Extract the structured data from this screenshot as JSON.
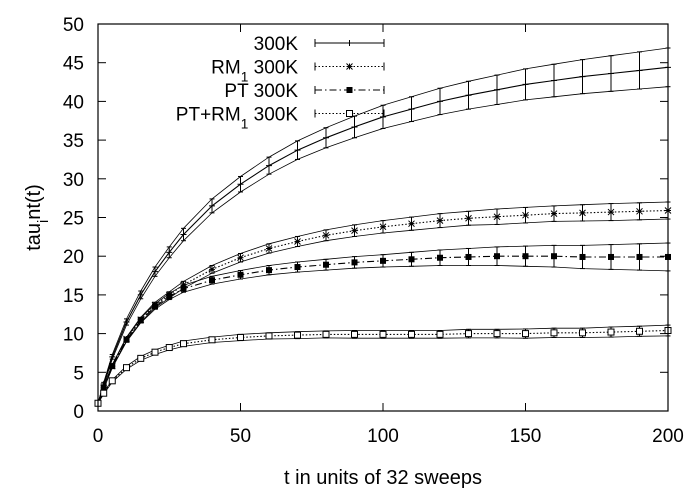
{
  "chart_data": {
    "type": "line",
    "title": "",
    "xlabel": "t in units of 32 sweeps",
    "ylabel": "tau_int(t)",
    "xlim": [
      0,
      200
    ],
    "ylim": [
      0,
      50
    ],
    "xticks": [
      0,
      50,
      100,
      150,
      200
    ],
    "yticks": [
      0,
      5,
      10,
      15,
      20,
      25,
      30,
      35,
      40,
      45,
      50
    ],
    "grid": false,
    "legend_position": "top-right",
    "error_bars": true,
    "x": [
      0,
      2,
      5,
      10,
      15,
      20,
      25,
      30,
      40,
      50,
      60,
      70,
      80,
      90,
      100,
      110,
      120,
      130,
      140,
      150,
      160,
      170,
      180,
      190,
      200
    ],
    "series": [
      {
        "name": "300K",
        "marker": "plus",
        "line": "solid",
        "values": [
          1,
          3.5,
          7.0,
          11.5,
          15.0,
          18.0,
          20.5,
          22.8,
          26.5,
          29.3,
          31.7,
          33.7,
          35.3,
          36.7,
          38.0,
          39.0,
          40.0,
          40.8,
          41.5,
          42.2,
          42.7,
          43.2,
          43.6,
          44.0,
          44.4
        ],
        "errors": [
          0,
          0.2,
          0.3,
          0.4,
          0.5,
          0.6,
          0.7,
          0.8,
          0.9,
          1.0,
          1.1,
          1.2,
          1.3,
          1.4,
          1.5,
          1.6,
          1.7,
          1.8,
          1.9,
          2.0,
          2.1,
          2.2,
          2.3,
          2.4,
          2.5
        ]
      },
      {
        "name": "RM_1 300K",
        "marker": "star",
        "line": "dotted",
        "values": [
          1,
          3.0,
          5.8,
          9.3,
          11.8,
          13.7,
          15.0,
          16.3,
          18.3,
          19.8,
          21.0,
          21.9,
          22.7,
          23.3,
          23.8,
          24.2,
          24.6,
          24.9,
          25.1,
          25.3,
          25.5,
          25.6,
          25.7,
          25.8,
          25.9
        ],
        "errors": [
          0,
          0.15,
          0.2,
          0.25,
          0.3,
          0.35,
          0.4,
          0.45,
          0.5,
          0.55,
          0.6,
          0.65,
          0.7,
          0.75,
          0.8,
          0.85,
          0.9,
          0.9,
          1.0,
          1.0,
          1.0,
          1.05,
          1.1,
          1.1,
          1.1
        ]
      },
      {
        "name": "PT 300K",
        "marker": "filled-square",
        "line": "dash-dot",
        "values": [
          1,
          3.0,
          5.8,
          9.2,
          11.7,
          13.5,
          14.8,
          15.8,
          16.9,
          17.6,
          18.2,
          18.6,
          18.9,
          19.2,
          19.4,
          19.6,
          19.8,
          19.9,
          20.0,
          20.0,
          20.0,
          19.9,
          19.9,
          19.9,
          19.9
        ],
        "errors": [
          0,
          0.15,
          0.2,
          0.25,
          0.3,
          0.35,
          0.4,
          0.45,
          0.5,
          0.55,
          0.6,
          0.65,
          0.7,
          0.75,
          0.8,
          0.9,
          1.0,
          1.1,
          1.2,
          1.3,
          1.4,
          1.5,
          1.6,
          1.7,
          1.8
        ]
      },
      {
        "name": "PT+RM_1 300K",
        "marker": "open-square",
        "line": "dotted",
        "values": [
          1,
          2.3,
          3.9,
          5.6,
          6.8,
          7.6,
          8.2,
          8.7,
          9.2,
          9.5,
          9.7,
          9.8,
          9.9,
          9.9,
          9.9,
          9.9,
          9.9,
          10.0,
          10.0,
          10.0,
          10.1,
          10.1,
          10.2,
          10.3,
          10.4
        ],
        "errors": [
          0,
          0.1,
          0.15,
          0.2,
          0.25,
          0.3,
          0.3,
          0.35,
          0.35,
          0.4,
          0.4,
          0.45,
          0.45,
          0.5,
          0.5,
          0.5,
          0.5,
          0.55,
          0.55,
          0.6,
          0.6,
          0.6,
          0.65,
          0.65,
          0.7
        ]
      }
    ]
  }
}
